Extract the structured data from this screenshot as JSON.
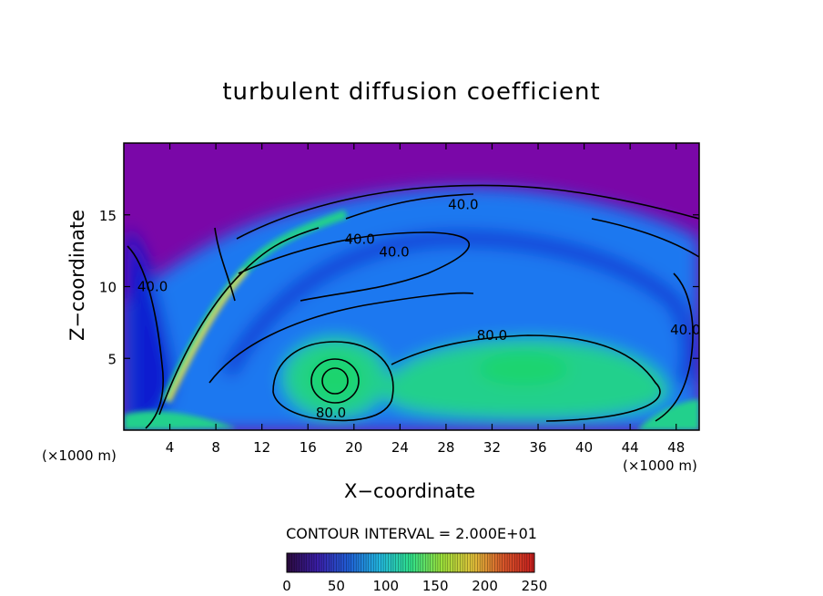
{
  "chart_data": {
    "type": "heatmap",
    "title": "turbulent diffusion coefficient",
    "xlabel": "X−coordinate",
    "ylabel": "Z−coordinate",
    "x_unit": "(×1000 m)",
    "xlim": [
      0,
      50
    ],
    "ylim": [
      0,
      20
    ],
    "xticks": [
      4,
      8,
      12,
      16,
      20,
      24,
      28,
      32,
      36,
      40,
      44,
      48
    ],
    "yticks": [
      5,
      10,
      15
    ],
    "contour_interval_text": "CONTOUR INTERVAL = 2.000E+01",
    "contour_labels": [
      {
        "text": "40.0",
        "x": 29.5,
        "y": 15.7
      },
      {
        "text": "40.0",
        "x": 20.5,
        "y": 13.3
      },
      {
        "text": "40.0",
        "x": 23.5,
        "y": 12.4
      },
      {
        "text": "80.0",
        "x": 32.0,
        "y": 6.6
      },
      {
        "text": "80.0",
        "x": 18.0,
        "y": 1.2
      },
      {
        "text": "40.0",
        "x": 2.5,
        "y": 10.0
      },
      {
        "text": "40.0",
        "x": 48.8,
        "y": 7.0
      }
    ],
    "colorbar": {
      "min": 0,
      "max": 250,
      "ticks": [
        0,
        50,
        100,
        150,
        200,
        250
      ],
      "colors": [
        "#2b0a3d",
        "#3a1ea8",
        "#1f5fd6",
        "#22b8e0",
        "#2fe08a",
        "#9be03a",
        "#e0c23a",
        "#d8562a",
        "#c81e1e"
      ]
    },
    "field_colors": {
      "upper_region": "#7a07a8",
      "low": "#0a1ad0",
      "mid": "#1e78f0",
      "high": "#20d08c",
      "peak": "#1fd46e",
      "hot": "#f0e030"
    }
  }
}
